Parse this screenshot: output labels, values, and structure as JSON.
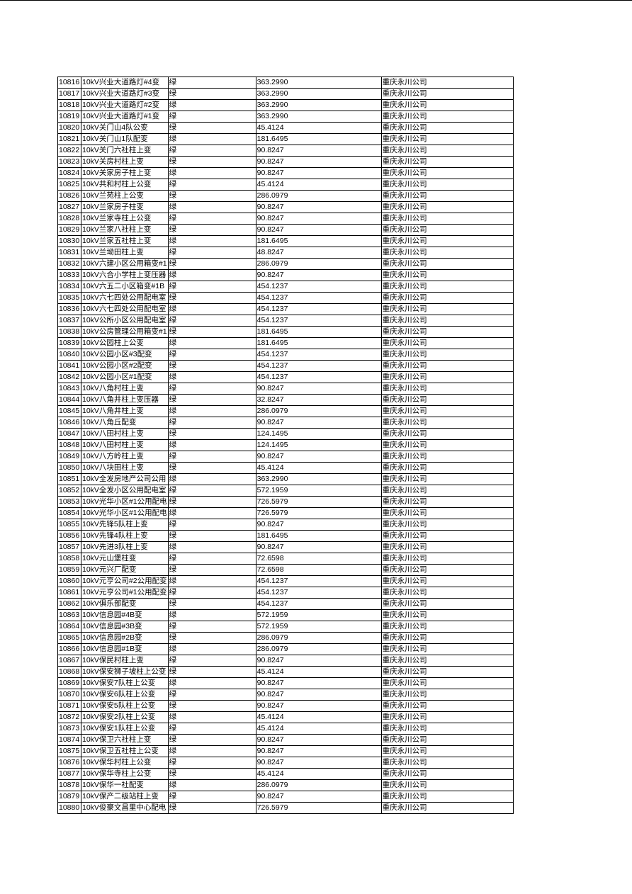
{
  "table": {
    "rows": [
      [
        "10816",
        "10kV兴业大道路灯#4变",
        "绿",
        "363.2990",
        "重庆永川公司"
      ],
      [
        "10817",
        "10kV兴业大道路灯#3变",
        "绿",
        "363.2990",
        "重庆永川公司"
      ],
      [
        "10818",
        "10kV兴业大道路灯#2变",
        "绿",
        "363.2990",
        "重庆永川公司"
      ],
      [
        "10819",
        "10kV兴业大道路灯#1变",
        "绿",
        "363.2990",
        "重庆永川公司"
      ],
      [
        "10820",
        "10kV关门山4队公变",
        "绿",
        "45.4124",
        "重庆永川公司"
      ],
      [
        "10821",
        "10kV关门山1队配变",
        "绿",
        "181.6495",
        "重庆永川公司"
      ],
      [
        "10822",
        "10kV关门六社柱上变",
        "绿",
        "90.8247",
        "重庆永川公司"
      ],
      [
        "10823",
        "10kV关房村柱上变",
        "绿",
        "90.8247",
        "重庆永川公司"
      ],
      [
        "10824",
        "10kV关家房子柱上变",
        "绿",
        "90.8247",
        "重庆永川公司"
      ],
      [
        "10825",
        "10kV共和村柱上公变",
        "绿",
        "45.4124",
        "重庆永川公司"
      ],
      [
        "10826",
        "10kV兰苑柱上公变",
        "绿",
        "286.0979",
        "重庆永川公司"
      ],
      [
        "10827",
        "10kV兰家房子柱变",
        "绿",
        "90.8247",
        "重庆永川公司"
      ],
      [
        "10828",
        "10kV兰家寺柱上公变",
        "绿",
        "90.8247",
        "重庆永川公司"
      ],
      [
        "10829",
        "10kV兰家八社柱上变",
        "绿",
        "90.8247",
        "重庆永川公司"
      ],
      [
        "10830",
        "10kV兰家五社柱上变",
        "绿",
        "181.6495",
        "重庆永川公司"
      ],
      [
        "10831",
        "10kV兰坳田柱上变",
        "绿",
        "48.8247",
        "重庆永川公司"
      ],
      [
        "10832",
        "10kV六建小区公用箱变#1",
        "绿",
        "286.0979",
        "重庆永川公司"
      ],
      [
        "10833",
        "10kV六合小学柱上变压器",
        "绿",
        "90.8247",
        "重庆永川公司"
      ],
      [
        "10834",
        "10kV六五二小区箱变#1B",
        "绿",
        "454.1237",
        "重庆永川公司"
      ],
      [
        "10835",
        "10kV六七四处公用配电室",
        "绿",
        "454.1237",
        "重庆永川公司"
      ],
      [
        "10836",
        "10kV六七四处公用配电室",
        "绿",
        "454.1237",
        "重庆永川公司"
      ],
      [
        "10837",
        "10kV公所小区公用配电室",
        "绿",
        "454.1237",
        "重庆永川公司"
      ],
      [
        "10838",
        "10kV公房管理公用箱变#1",
        "绿",
        "181.6495",
        "重庆永川公司"
      ],
      [
        "10839",
        "10kV公园柱上公变",
        "绿",
        "181.6495",
        "重庆永川公司"
      ],
      [
        "10840",
        "10kV公园小区#3配变",
        "绿",
        "454.1237",
        "重庆永川公司"
      ],
      [
        "10841",
        "10kV公园小区#2配变",
        "绿",
        "454.1237",
        "重庆永川公司"
      ],
      [
        "10842",
        "10kV公园小区#1配变",
        "绿",
        "454.1237",
        "重庆永川公司"
      ],
      [
        "10843",
        "10kV八角村柱上变",
        "绿",
        "90.8247",
        "重庆永川公司"
      ],
      [
        "10844",
        "10kV八角井柱上变压器",
        "绿",
        "32.8247",
        "重庆永川公司"
      ],
      [
        "10845",
        "10kV八角井柱上变",
        "绿",
        "286.0979",
        "重庆永川公司"
      ],
      [
        "10846",
        "10kV八角丘配变",
        "绿",
        "90.8247",
        "重庆永川公司"
      ],
      [
        "10847",
        "10kV八田村柱上变",
        "绿",
        "124.1495",
        "重庆永川公司"
      ],
      [
        "10848",
        "10kV八田村柱上变",
        "绿",
        "124.1495",
        "重庆永川公司"
      ],
      [
        "10849",
        "10kV八方岭柱上变",
        "绿",
        "90.8247",
        "重庆永川公司"
      ],
      [
        "10850",
        "10kV八块田柱上变",
        "绿",
        "45.4124",
        "重庆永川公司"
      ],
      [
        "10851",
        "10kV全发房地产公司公用",
        "绿",
        "363.2990",
        "重庆永川公司"
      ],
      [
        "10852",
        "10kV全发小区公用配电室",
        "绿",
        "572.1959",
        "重庆永川公司"
      ],
      [
        "10853",
        "10kV光华小区#1公用配电",
        "绿",
        "726.5979",
        "重庆永川公司"
      ],
      [
        "10854",
        "10kV光华小区#1公用配电",
        "绿",
        "726.5979",
        "重庆永川公司"
      ],
      [
        "10855",
        "10kV先锋5队柱上变",
        "绿",
        "90.8247",
        "重庆永川公司"
      ],
      [
        "10856",
        "10kV先锋4队柱上变",
        "绿",
        "181.6495",
        "重庆永川公司"
      ],
      [
        "10857",
        "10kV先进3队柱上变",
        "绿",
        "90.8247",
        "重庆永川公司"
      ],
      [
        "10858",
        "10kV元山堡柱变",
        "绿",
        "72.6598",
        "重庆永川公司"
      ],
      [
        "10859",
        "10kV元兴厂配变",
        "绿",
        "72.6598",
        "重庆永川公司"
      ],
      [
        "10860",
        "10kV元亨公司#2公用配变",
        "绿",
        "454.1237",
        "重庆永川公司"
      ],
      [
        "10861",
        "10kV元亨公司#1公用配变",
        "绿",
        "454.1237",
        "重庆永川公司"
      ],
      [
        "10862",
        "10kV俱乐部配变",
        "绿",
        "454.1237",
        "重庆永川公司"
      ],
      [
        "10863",
        "10kV信息园#4B变",
        "绿",
        "572.1959",
        "重庆永川公司"
      ],
      [
        "10864",
        "10kV信息园#3B变",
        "绿",
        "572.1959",
        "重庆永川公司"
      ],
      [
        "10865",
        "10kV信息园#2B变",
        "绿",
        "286.0979",
        "重庆永川公司"
      ],
      [
        "10866",
        "10kV信息园#1B变",
        "绿",
        "286.0979",
        "重庆永川公司"
      ],
      [
        "10867",
        "10kV保民村柱上变",
        "绿",
        "90.8247",
        "重庆永川公司"
      ],
      [
        "10868",
        "10kV保安狮子坡柱上公变",
        "绿",
        "45.4124",
        "重庆永川公司"
      ],
      [
        "10869",
        "10kV保安7队柱上公变",
        "绿",
        "90.8247",
        "重庆永川公司"
      ],
      [
        "10870",
        "10kV保安6队柱上公变",
        "绿",
        "90.8247",
        "重庆永川公司"
      ],
      [
        "10871",
        "10kV保安5队柱上公变",
        "绿",
        "90.8247",
        "重庆永川公司"
      ],
      [
        "10872",
        "10kV保安2队柱上公变",
        "绿",
        "45.4124",
        "重庆永川公司"
      ],
      [
        "10873",
        "10kV保安1队柱上公变",
        "绿",
        "45.4124",
        "重庆永川公司"
      ],
      [
        "10874",
        "10kV保卫六社柱上变",
        "绿",
        "90.8247",
        "重庆永川公司"
      ],
      [
        "10875",
        "10kV保卫五社柱上公变",
        "绿",
        "90.8247",
        "重庆永川公司"
      ],
      [
        "10876",
        "10kV保华村柱上公变",
        "绿",
        "90.8247",
        "重庆永川公司"
      ],
      [
        "10877",
        "10kV保华寺柱上公变",
        "绿",
        "45.4124",
        "重庆永川公司"
      ],
      [
        "10878",
        "10kV保华一社配变",
        "绿",
        "286.0979",
        "重庆永川公司"
      ],
      [
        "10879",
        "10kV保产二级站柱上变",
        "绿",
        "90.8247",
        "重庆永川公司"
      ],
      [
        "10880",
        "10kV俊豪文昌里中心配电",
        "绿",
        "726.5979",
        "重庆永川公司"
      ]
    ]
  }
}
